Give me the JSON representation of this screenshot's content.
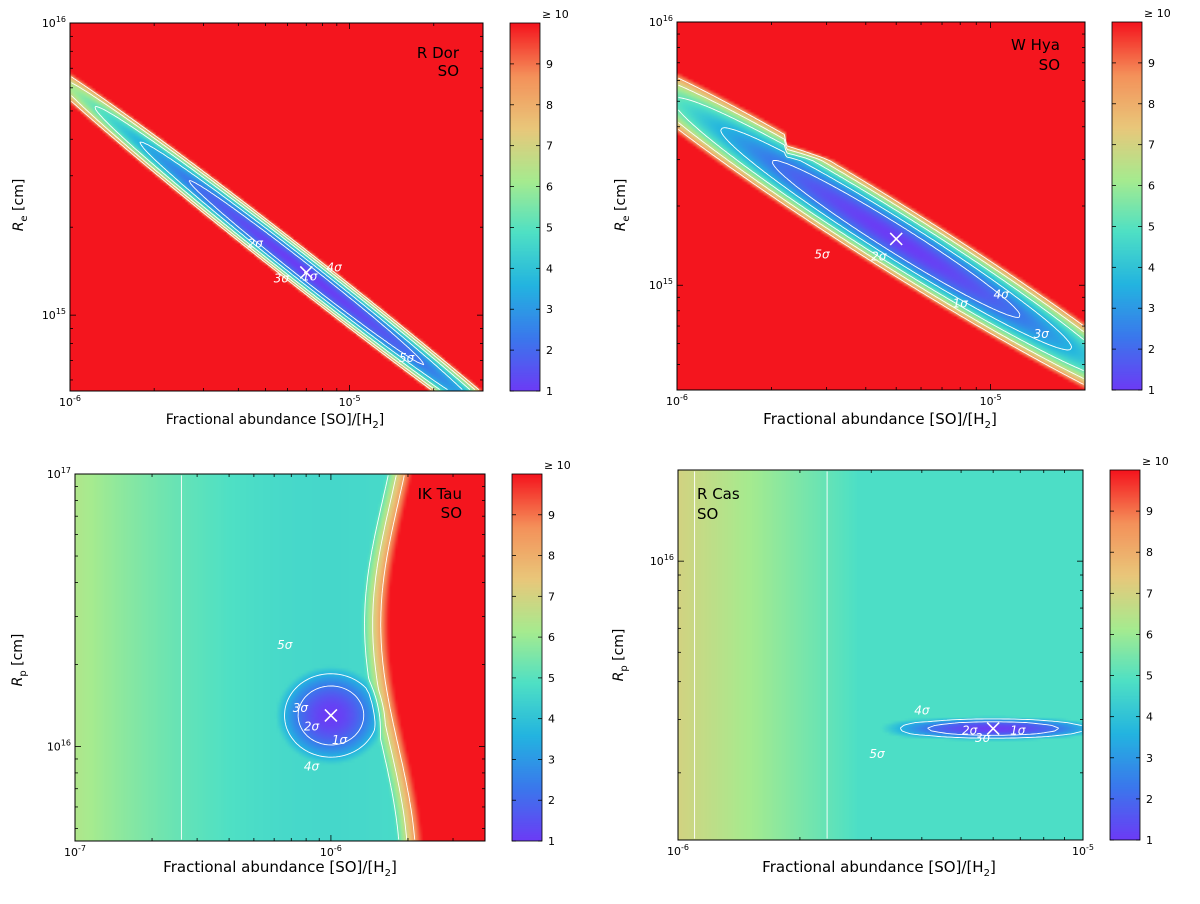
{
  "colorbar": {
    "stops": [
      "#6b3cf5",
      "#3a78ec",
      "#23b4e0",
      "#4ee0c5",
      "#a6eb8f",
      "#e9c77a",
      "#f4915a",
      "#f4151e"
    ],
    "ticks": [
      "1",
      "2",
      "3",
      "4",
      "5",
      "6",
      "7",
      "8",
      "9"
    ],
    "top_label": "≥ 10",
    "marker_color": "#ffffff",
    "contour_color": "#ffffff"
  },
  "chart_data": [
    {
      "id": "rdor",
      "type": "heatmap",
      "title": "R Dor",
      "subtitle": "SO",
      "xlabel": "Fractional abundance [SO]/[H",
      "xlabel_sub": "2",
      "xlabel_end": "]",
      "ylabel": "R",
      "ylabel_sub": "e",
      "ylabel_end": " [cm]",
      "xscale": "log",
      "yscale": "log",
      "xlim": [
        1e-06,
        3e-05
      ],
      "ylim": [
        550000000000000.0,
        1e+16
      ],
      "xticks": [
        {
          "v": 1e-06,
          "base": "10",
          "exp": "-6"
        },
        {
          "v": 1e-05,
          "base": "10",
          "exp": "-5"
        }
      ],
      "yticks": [
        {
          "v": 1000000000000000.0,
          "base": "10",
          "exp": "15"
        },
        {
          "v": 1e+16,
          "base": "10",
          "exp": "16"
        }
      ],
      "valley": {
        "kind": "tilted",
        "x0": 7e-06,
        "y0": 1400000000000000.0,
        "slope": -0.75,
        "along": 0.8,
        "across": 0.095,
        "top_alongmult": 1.0
      },
      "best_fit": {
        "x": 7e-06,
        "y": 1400000000000000.0
      },
      "contour_labels": [
        {
          "text": "1σ",
          "x": 7.2e-06,
          "y": 1350000000000000.0
        },
        {
          "text": "2σ",
          "x": 4.6e-06,
          "y": 1750000000000000.0
        },
        {
          "text": "3σ",
          "x": 5.7e-06,
          "y": 1330000000000000.0
        },
        {
          "text": "4σ",
          "x": 8.8e-06,
          "y": 1450000000000000.0
        },
        {
          "text": "5σ",
          "x": 1.6e-05,
          "y": 710000000000000.0
        }
      ]
    },
    {
      "id": "whya",
      "type": "heatmap",
      "title": "W Hya",
      "subtitle": "SO",
      "xlabel": "Fractional abundance [SO]/[H",
      "xlabel_sub": "2",
      "xlabel_end": "]",
      "ylabel": "R",
      "ylabel_sub": "e",
      "ylabel_end": " [cm]",
      "xscale": "log",
      "yscale": "log",
      "xlim": [
        1e-06,
        2e-05
      ],
      "ylim": [
        400000000000000.0,
        1e+16
      ],
      "xticks": [
        {
          "v": 1e-06,
          "base": "10",
          "exp": "-6"
        },
        {
          "v": 1e-05,
          "base": "10",
          "exp": "-5"
        }
      ],
      "yticks": [
        {
          "v": 1000000000000000.0,
          "base": "10",
          "exp": "15"
        },
        {
          "v": 1e+16,
          "base": "10",
          "exp": "16"
        }
      ],
      "valley": {
        "kind": "tilted",
        "x0": 5e-06,
        "y0": 1500000000000000.0,
        "slope": -0.75,
        "along": 0.75,
        "across": 0.18,
        "top_alongmult": 1.0,
        "cut_above": 3000000000000000.0
      },
      "best_fit": {
        "x": 5e-06,
        "y": 1500000000000000.0
      },
      "contour_labels": [
        {
          "text": "1σ",
          "x": 8e-06,
          "y": 850000000000000.0
        },
        {
          "text": "2σ",
          "x": 4.4e-06,
          "y": 1280000000000000.0
        },
        {
          "text": "4σ",
          "x": 1.08e-05,
          "y": 920000000000000.0
        },
        {
          "text": "3σ",
          "x": 1.45e-05,
          "y": 650000000000000.0
        },
        {
          "text": "5σ",
          "x": 2.9e-06,
          "y": 1300000000000000.0
        }
      ]
    },
    {
      "id": "iktau",
      "type": "heatmap",
      "title": "IK Tau",
      "subtitle": "SO",
      "xlabel": "Fractional abundance [SO]/[H",
      "xlabel_sub": "2",
      "xlabel_end": "]",
      "ylabel": "R",
      "ylabel_sub": "p",
      "ylabel_end": " [cm]",
      "xscale": "log",
      "yscale": "log",
      "xlim": [
        1e-07,
        4e-06
      ],
      "ylim": [
        4500000000000000.0,
        1e+17
      ],
      "xticks": [
        {
          "v": 1e-07,
          "base": "10",
          "exp": "-7"
        },
        {
          "v": 1e-06,
          "base": "10",
          "exp": "-6"
        }
      ],
      "yticks": [
        {
          "v": 1e+16,
          "base": "10",
          "exp": "16"
        },
        {
          "v": 1e+17,
          "base": "10",
          "exp": "17"
        }
      ],
      "valley": {
        "kind": "ik",
        "x0": 1e-06,
        "y0": 1.3e+16
      },
      "best_fit": {
        "x": 1e-06,
        "y": 1.3e+16
      },
      "contour_labels": [
        {
          "text": "1σ",
          "x": 1.08e-06,
          "y": 1.05e+16
        },
        {
          "text": "2σ",
          "x": 8.4e-07,
          "y": 1.18e+16
        },
        {
          "text": "3σ",
          "x": 7.6e-07,
          "y": 1.38e+16
        },
        {
          "text": "4σ",
          "x": 8.4e-07,
          "y": 8400000000000000.0
        },
        {
          "text": "5σ",
          "x": 6.6e-07,
          "y": 2.35e+16
        }
      ]
    },
    {
      "id": "rcas",
      "type": "heatmap",
      "title": "R Cas",
      "subtitle": "SO",
      "xlabel": "Fractional abundance [SO]/[H",
      "xlabel_sub": "2",
      "xlabel_end": "]",
      "ylabel": "R",
      "ylabel_sub": "p",
      "ylabel_end": " [cm]",
      "xscale": "log",
      "yscale": "log",
      "xlim": [
        1e-06,
        1e-05
      ],
      "ylim": [
        1200000000000000.0,
        2e+16
      ],
      "xticks": [
        {
          "v": 1e-06,
          "base": "10",
          "exp": "-6"
        },
        {
          "v": 1e-05,
          "base": "10",
          "exp": "-5"
        }
      ],
      "yticks": [
        {
          "v": 1e+16,
          "base": "10",
          "exp": "16"
        }
      ],
      "valley": {
        "kind": "rcas",
        "x0": 6e-06,
        "y0": 2800000000000000.0
      },
      "best_fit": {
        "x": 6e-06,
        "y": 2800000000000000.0
      },
      "contour_labels": [
        {
          "text": "1σ",
          "x": 6.9e-06,
          "y": 2750000000000000.0
        },
        {
          "text": "2σ",
          "x": 5.25e-06,
          "y": 2750000000000000.0
        },
        {
          "text": "3σ",
          "x": 5.65e-06,
          "y": 2600000000000000.0
        },
        {
          "text": "4σ",
          "x": 4e-06,
          "y": 3200000000000000.0
        },
        {
          "text": "5σ",
          "x": 3.1e-06,
          "y": 2300000000000000.0
        }
      ]
    }
  ]
}
